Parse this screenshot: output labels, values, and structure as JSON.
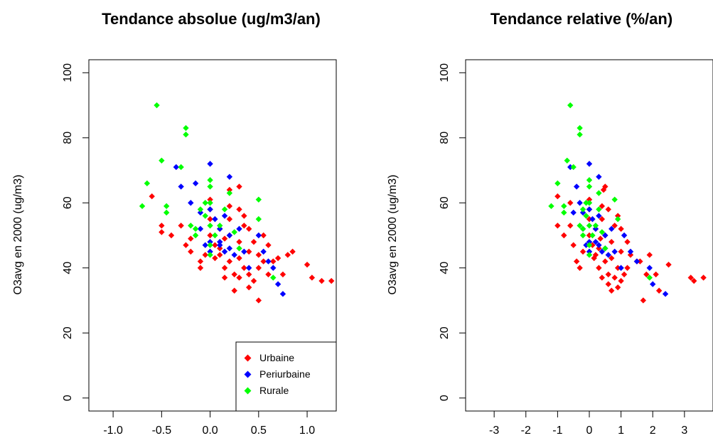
{
  "chart_data": [
    {
      "type": "scatter",
      "title": "Tendance absolue (ug/m3/an)",
      "xlabel": "",
      "ylabel": "O3avg en 2000 (ug/m3)",
      "xlim": [
        -1.25,
        1.3
      ],
      "ylim": [
        -4,
        104
      ],
      "xticks": [
        -1.0,
        -0.5,
        0.0,
        0.5,
        1.0
      ],
      "xtick_labels": [
        "-1.0",
        "-0.5",
        "0.0",
        "0.5",
        "1.0"
      ],
      "yticks": [
        0,
        20,
        40,
        60,
        80,
        100
      ],
      "ytick_labels": [
        "0",
        "20",
        "40",
        "60",
        "80",
        "100"
      ],
      "legend": {
        "position": "bottom-right",
        "entries": [
          "Urbaine",
          "Periurbaine",
          "Rurale"
        ]
      },
      "series": [
        {
          "name": "Urbaine",
          "color": "#ff0000",
          "points": [
            [
              -0.6,
              62
            ],
            [
              -0.5,
              53
            ],
            [
              -0.5,
              51
            ],
            [
              -0.4,
              50
            ],
            [
              -0.3,
              53
            ],
            [
              -0.2,
              49
            ],
            [
              -0.2,
              45
            ],
            [
              -0.1,
              42
            ],
            [
              -0.1,
              40
            ],
            [
              -0.05,
              44
            ],
            [
              0,
              61
            ],
            [
              0,
              58
            ],
            [
              0,
              55
            ],
            [
              0,
              50
            ],
            [
              0.05,
              47
            ],
            [
              0.1,
              52
            ],
            [
              0.1,
              44
            ],
            [
              0.15,
              40
            ],
            [
              0.15,
              37
            ],
            [
              0.2,
              59
            ],
            [
              0.2,
              55
            ],
            [
              0.2,
              50
            ],
            [
              0.2,
              42
            ],
            [
              0.25,
              38
            ],
            [
              0.3,
              65
            ],
            [
              0.3,
              58
            ],
            [
              0.3,
              48
            ],
            [
              0.3,
              43
            ],
            [
              0.35,
              53
            ],
            [
              0.35,
              40
            ],
            [
              0.4,
              52
            ],
            [
              0.4,
              45
            ],
            [
              0.4,
              38
            ],
            [
              0.45,
              48
            ],
            [
              0.5,
              44
            ],
            [
              0.5,
              40
            ],
            [
              0.5,
              30
            ],
            [
              0.55,
              50
            ],
            [
              0.55,
              42
            ],
            [
              0.6,
              47
            ],
            [
              0.6,
              38
            ],
            [
              0.7,
              43
            ],
            [
              0.75,
              38
            ],
            [
              0.8,
              44
            ],
            [
              0.85,
              45
            ],
            [
              1.0,
              41
            ],
            [
              1.05,
              37
            ],
            [
              1.15,
              36
            ],
            [
              1.25,
              36
            ],
            [
              0.25,
              33
            ],
            [
              0.1,
              46
            ],
            [
              0.05,
              43
            ],
            [
              0.35,
              56
            ],
            [
              0.45,
              36
            ],
            [
              0.65,
              42
            ],
            [
              -0.25,
              47
            ],
            [
              0.3,
              37
            ],
            [
              0.15,
              49
            ],
            [
              0.4,
              34
            ],
            [
              0.2,
              64
            ]
          ]
        },
        {
          "name": "Periurbaine",
          "color": "#0000ff",
          "points": [
            [
              -0.35,
              71
            ],
            [
              -0.3,
              65
            ],
            [
              -0.2,
              60
            ],
            [
              -0.15,
              66
            ],
            [
              -0.1,
              57
            ],
            [
              -0.1,
              52
            ],
            [
              -0.05,
              47
            ],
            [
              0,
              72
            ],
            [
              0,
              58
            ],
            [
              0,
              48
            ],
            [
              0,
              45
            ],
            [
              0.05,
              55
            ],
            [
              0.1,
              52
            ],
            [
              0.1,
              47
            ],
            [
              0.15,
              56
            ],
            [
              0.15,
              45
            ],
            [
              0.2,
              68
            ],
            [
              0.2,
              50
            ],
            [
              0.2,
              46
            ],
            [
              0.25,
              44
            ],
            [
              0.3,
              52
            ],
            [
              0.35,
              45
            ],
            [
              0.4,
              40
            ],
            [
              0.5,
              50
            ],
            [
              0.55,
              45
            ],
            [
              0.6,
              42
            ],
            [
              0.65,
              40
            ],
            [
              0.7,
              35
            ],
            [
              0.75,
              32
            ],
            [
              0.1,
              48
            ]
          ]
        },
        {
          "name": "Rurale",
          "color": "#00ff00",
          "points": [
            [
              -0.7,
              59
            ],
            [
              -0.65,
              66
            ],
            [
              -0.55,
              90
            ],
            [
              -0.5,
              73
            ],
            [
              -0.45,
              59
            ],
            [
              -0.45,
              57
            ],
            [
              -0.3,
              71
            ],
            [
              -0.25,
              83
            ],
            [
              -0.25,
              81
            ],
            [
              -0.2,
              53
            ],
            [
              -0.15,
              52
            ],
            [
              -0.15,
              50
            ],
            [
              -0.05,
              60
            ],
            [
              -0.05,
              56
            ],
            [
              0,
              67
            ],
            [
              0,
              65
            ],
            [
              0,
              60
            ],
            [
              0,
              53
            ],
            [
              0,
              47
            ],
            [
              0,
              44
            ],
            [
              0.05,
              50
            ],
            [
              0.1,
              53
            ],
            [
              0.2,
              63
            ],
            [
              0.25,
              51
            ],
            [
              0.5,
              61
            ],
            [
              0.5,
              55
            ],
            [
              0.65,
              37
            ],
            [
              0.15,
              58
            ],
            [
              -0.1,
              58
            ],
            [
              0.3,
              46
            ]
          ]
        }
      ]
    },
    {
      "type": "scatter",
      "title": "Tendance relative (%/an)",
      "xlabel": "",
      "ylabel": "O3avg en 2000 (ug/m3)",
      "xlim": [
        -3.9,
        3.9
      ],
      "ylim": [
        -4,
        104
      ],
      "xticks": [
        -3,
        -2,
        -1,
        0,
        1,
        2,
        3
      ],
      "xtick_labels": [
        "-3",
        "-2",
        "-1",
        "0",
        "1",
        "2",
        "3"
      ],
      "yticks": [
        0,
        20,
        40,
        60,
        80,
        100
      ],
      "ytick_labels": [
        "0",
        "20",
        "40",
        "60",
        "80",
        "100"
      ],
      "series": [
        {
          "name": "Urbaine",
          "color": "#ff0000",
          "points": [
            [
              -1.0,
              62
            ],
            [
              -1.0,
              53
            ],
            [
              -0.8,
              50
            ],
            [
              -0.6,
              53
            ],
            [
              -0.5,
              47
            ],
            [
              -0.4,
              42
            ],
            [
              -0.3,
              40
            ],
            [
              -0.2,
              45
            ],
            [
              0,
              61
            ],
            [
              0,
              58
            ],
            [
              0,
              55
            ],
            [
              0,
              50
            ],
            [
              0.1,
              47
            ],
            [
              0.2,
              52
            ],
            [
              0.2,
              44
            ],
            [
              0.3,
              40
            ],
            [
              0.4,
              37
            ],
            [
              0.4,
              59
            ],
            [
              0.4,
              55
            ],
            [
              0.5,
              50
            ],
            [
              0.5,
              42
            ],
            [
              0.6,
              38
            ],
            [
              0.6,
              35
            ],
            [
              0.7,
              33
            ],
            [
              0.5,
              65
            ],
            [
              0.6,
              58
            ],
            [
              0.7,
              48
            ],
            [
              0.7,
              43
            ],
            [
              0.8,
              53
            ],
            [
              0.9,
              40
            ],
            [
              1.0,
              52
            ],
            [
              1.0,
              45
            ],
            [
              1.1,
              38
            ],
            [
              1.2,
              48
            ],
            [
              1.3,
              44
            ],
            [
              1.2,
              40
            ],
            [
              1.7,
              30
            ],
            [
              1.5,
              42
            ],
            [
              1.9,
              44
            ],
            [
              1.8,
              38
            ],
            [
              2.1,
              38
            ],
            [
              2.2,
              33
            ],
            [
              2.5,
              41
            ],
            [
              3.2,
              37
            ],
            [
              3.3,
              36
            ],
            [
              3.6,
              37
            ],
            [
              0.3,
              46
            ],
            [
              0.15,
              43
            ],
            [
              0.9,
              56
            ],
            [
              1.0,
              36
            ],
            [
              1.6,
              42
            ],
            [
              -0.6,
              60
            ],
            [
              0.8,
              37
            ],
            [
              0.35,
              49
            ],
            [
              0.9,
              34
            ],
            [
              0.45,
              64
            ]
          ]
        },
        {
          "name": "Periurbaine",
          "color": "#0000ff",
          "points": [
            [
              -0.6,
              71
            ],
            [
              -0.4,
              65
            ],
            [
              -0.3,
              60
            ],
            [
              0,
              72
            ],
            [
              -0.2,
              57
            ],
            [
              -0.2,
              52
            ],
            [
              -0.1,
              47
            ],
            [
              0,
              58
            ],
            [
              0,
              48
            ],
            [
              0,
              45
            ],
            [
              0.1,
              55
            ],
            [
              0.2,
              52
            ],
            [
              0.3,
              47
            ],
            [
              0.3,
              56
            ],
            [
              0.4,
              45
            ],
            [
              0.3,
              68
            ],
            [
              0.5,
              50
            ],
            [
              0.5,
              46
            ],
            [
              0.6,
              44
            ],
            [
              0.7,
              52
            ],
            [
              0.8,
              45
            ],
            [
              1.0,
              40
            ],
            [
              1.1,
              50
            ],
            [
              1.3,
              45
            ],
            [
              1.5,
              42
            ],
            [
              1.9,
              40
            ],
            [
              2.0,
              35
            ],
            [
              2.4,
              32
            ],
            [
              0.2,
              48
            ],
            [
              -0.5,
              57
            ]
          ]
        },
        {
          "name": "Rurale",
          "color": "#00ff00",
          "points": [
            [
              -1.2,
              59
            ],
            [
              -1.0,
              66
            ],
            [
              -0.6,
              90
            ],
            [
              -0.7,
              73
            ],
            [
              -0.8,
              59
            ],
            [
              -0.8,
              57
            ],
            [
              -0.5,
              71
            ],
            [
              -0.3,
              83
            ],
            [
              -0.3,
              81
            ],
            [
              -0.3,
              53
            ],
            [
              -0.2,
              52
            ],
            [
              -0.2,
              50
            ],
            [
              -0.1,
              60
            ],
            [
              -0.1,
              56
            ],
            [
              0,
              67
            ],
            [
              0,
              65
            ],
            [
              0,
              60
            ],
            [
              0,
              53
            ],
            [
              0,
              47
            ],
            [
              0,
              44
            ],
            [
              0.1,
              50
            ],
            [
              0.2,
              53
            ],
            [
              0.3,
              63
            ],
            [
              0.4,
              51
            ],
            [
              0.8,
              61
            ],
            [
              0.9,
              55
            ],
            [
              1.9,
              37
            ],
            [
              0.3,
              58
            ],
            [
              -0.2,
              58
            ],
            [
              0.5,
              46
            ]
          ]
        }
      ]
    }
  ]
}
